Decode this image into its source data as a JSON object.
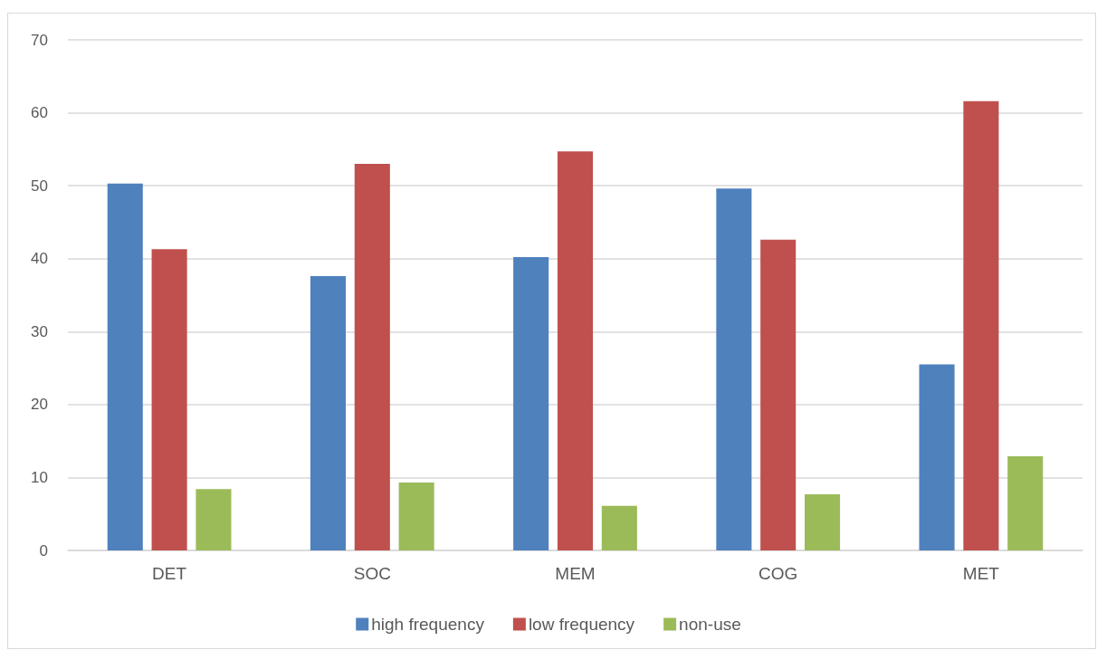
{
  "chart_data": {
    "type": "bar",
    "categories": [
      "DET",
      "SOC",
      "MEM",
      "COG",
      "MET"
    ],
    "series": [
      {
        "name": "high frequency",
        "color": "#4f81bd",
        "values": [
          50.3,
          37.6,
          40.2,
          49.6,
          25.5
        ]
      },
      {
        "name": "low frequency",
        "color": "#c0504d",
        "values": [
          41.3,
          53.0,
          54.7,
          42.6,
          61.6
        ]
      },
      {
        "name": "non-use",
        "color": "#9bbb59",
        "values": [
          8.4,
          9.3,
          6.1,
          7.7,
          12.9
        ]
      }
    ],
    "ylim": [
      0,
      70
    ],
    "yticks": [
      0,
      10,
      20,
      30,
      40,
      50,
      60,
      70
    ],
    "grid": "y",
    "legend": "bottom"
  }
}
